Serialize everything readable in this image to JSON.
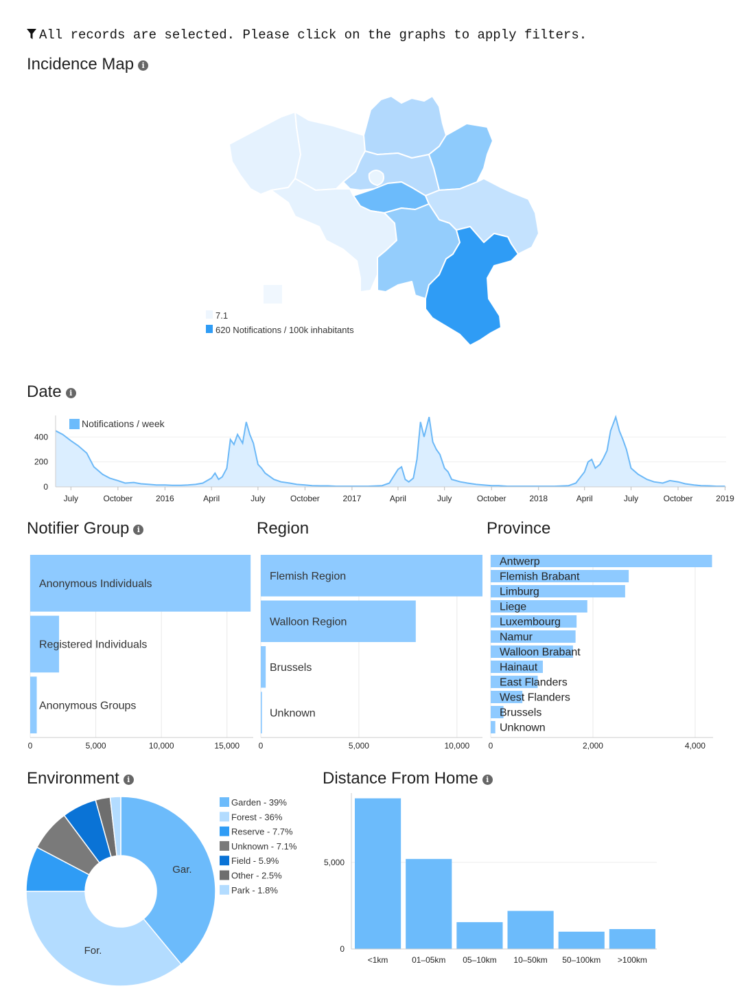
{
  "colors": {
    "bar": "#8ecaff",
    "bar_light": "#b3dcff",
    "date_fill": "#dbeeff",
    "date_line": "#6bb8f7",
    "map_strong": "#2f9cf5"
  },
  "filter_message": "All records are selected. Please click on the graphs to apply filters.",
  "filter_icon": "funnel-icon",
  "info_icon": "info-icon",
  "map": {
    "title": "Incidence Map",
    "legend_min": "7.1",
    "legend_max": "620 Notifications / 100k inhabitants"
  },
  "date": {
    "title": "Date",
    "legend": "Notifications / week",
    "y_ticks": [
      "0",
      "200",
      "400"
    ],
    "x_ticks": [
      "July",
      "October",
      "2016",
      "April",
      "July",
      "October",
      "2017",
      "April",
      "July",
      "October",
      "2018",
      "April",
      "July",
      "October",
      "2019"
    ]
  },
  "notifier": {
    "title": "Notifier Group",
    "x_ticks": [
      "0",
      "5,000",
      "10,000",
      "15,000"
    ]
  },
  "region": {
    "title": "Region",
    "x_ticks": [
      "0",
      "5,000",
      "10,000"
    ]
  },
  "province": {
    "title": "Province",
    "x_ticks": [
      "0",
      "2,000",
      "4,000"
    ]
  },
  "environment": {
    "title": "Environment",
    "slice_labels": [
      "Gar.",
      "For."
    ]
  },
  "distance": {
    "title": "Distance From Home",
    "y_ticks": [
      "0",
      "5,000"
    ]
  },
  "chart_data": [
    {
      "id": "date",
      "type": "area",
      "title": "Date",
      "series": [
        {
          "name": "Notifications / week",
          "x": [
            "2015-06-01",
            "2015-06-15",
            "2015-07-01",
            "2015-07-15",
            "2015-08-01",
            "2015-08-15",
            "2015-09-01",
            "2015-09-15",
            "2015-10-01",
            "2015-10-15",
            "2015-11-01",
            "2015-11-15",
            "2015-12-01",
            "2015-12-15",
            "2016-01-01",
            "2016-01-15",
            "2016-02-01",
            "2016-02-15",
            "2016-03-01",
            "2016-03-15",
            "2016-04-01",
            "2016-04-08",
            "2016-04-15",
            "2016-04-22",
            "2016-05-01",
            "2016-05-08",
            "2016-05-15",
            "2016-05-22",
            "2016-06-01",
            "2016-06-08",
            "2016-06-15",
            "2016-06-22",
            "2016-07-01",
            "2016-07-08",
            "2016-07-15",
            "2016-08-01",
            "2016-08-15",
            "2016-09-01",
            "2016-09-15",
            "2016-10-01",
            "2016-10-15",
            "2016-11-01",
            "2016-11-15",
            "2016-12-01",
            "2017-01-01",
            "2017-02-01",
            "2017-03-01",
            "2017-03-15",
            "2017-04-01",
            "2017-04-08",
            "2017-04-15",
            "2017-04-22",
            "2017-05-01",
            "2017-05-08",
            "2017-05-15",
            "2017-05-22",
            "2017-06-01",
            "2017-06-08",
            "2017-06-15",
            "2017-06-22",
            "2017-07-01",
            "2017-07-08",
            "2017-07-15",
            "2017-08-01",
            "2017-08-15",
            "2017-09-01",
            "2017-09-15",
            "2017-10-01",
            "2017-10-15",
            "2017-11-01",
            "2017-11-15",
            "2017-12-01",
            "2018-01-01",
            "2018-02-01",
            "2018-03-01",
            "2018-03-15",
            "2018-04-01",
            "2018-04-08",
            "2018-04-15",
            "2018-04-22",
            "2018-05-01",
            "2018-05-08",
            "2018-05-15",
            "2018-05-22",
            "2018-06-01",
            "2018-06-08",
            "2018-06-15",
            "2018-06-22",
            "2018-07-01",
            "2018-07-15",
            "2018-08-01",
            "2018-08-15",
            "2018-09-01",
            "2018-09-15",
            "2018-10-01",
            "2018-10-15",
            "2018-11-01",
            "2018-11-15",
            "2018-12-01",
            "2018-12-15",
            "2019-01-01"
          ],
          "y": [
            450,
            420,
            370,
            330,
            270,
            160,
            100,
            70,
            50,
            30,
            35,
            25,
            20,
            15,
            15,
            12,
            12,
            15,
            20,
            30,
            70,
            110,
            60,
            80,
            150,
            380,
            340,
            420,
            350,
            520,
            420,
            350,
            180,
            150,
            110,
            60,
            40,
            30,
            20,
            15,
            10,
            8,
            8,
            5,
            5,
            5,
            10,
            30,
            140,
            160,
            60,
            40,
            70,
            220,
            520,
            400,
            560,
            360,
            300,
            260,
            150,
            120,
            60,
            40,
            30,
            20,
            15,
            10,
            10,
            5,
            5,
            5,
            5,
            5,
            10,
            30,
            120,
            200,
            220,
            150,
            180,
            230,
            290,
            450,
            560,
            450,
            380,
            300,
            150,
            100,
            60,
            40,
            30,
            50,
            40,
            25,
            15,
            10,
            8,
            5,
            5
          ]
        }
      ],
      "xlabel": "",
      "ylabel": "",
      "ylim": [
        0,
        600
      ]
    },
    {
      "id": "notifier",
      "type": "bar",
      "orientation": "horizontal",
      "title": "Notifier Group",
      "categories": [
        "Anonymous Individuals",
        "Registered Individuals",
        "Anonymous Groups"
      ],
      "values": [
        16800,
        2200,
        500
      ],
      "xlim": [
        0,
        17000
      ]
    },
    {
      "id": "region",
      "type": "bar",
      "orientation": "horizontal",
      "title": "Region",
      "categories": [
        "Flemish Region",
        "Walloon Region",
        "Brussels",
        "Unknown"
      ],
      "values": [
        11300,
        7900,
        250,
        60
      ],
      "xlim": [
        0,
        11300
      ]
    },
    {
      "id": "province",
      "type": "bar",
      "orientation": "horizontal",
      "title": "Province",
      "categories": [
        "Antwerp",
        "Flemish Brabant",
        "Limburg",
        "Liege",
        "Luxembourg",
        "Namur",
        "Walloon Brabant",
        "Hainaut",
        "East Flanders",
        "West Flanders",
        "Brussels",
        "Unknown"
      ],
      "values": [
        4330,
        2700,
        2630,
        1890,
        1680,
        1660,
        1610,
        1020,
        920,
        620,
        250,
        90
      ],
      "xlim": [
        0,
        4350
      ]
    },
    {
      "id": "environment",
      "type": "pie",
      "title": "Environment",
      "categories": [
        "Garden - 39%",
        "Forest - 36%",
        "Reserve - 7.7%",
        "Unknown - 7.1%",
        "Field - 5.9%",
        "Other - 2.5%",
        "Park - 1.8%"
      ],
      "values": [
        39,
        36,
        7.7,
        7.1,
        5.9,
        2.5,
        1.8
      ],
      "colors": [
        "#6cbbfb",
        "#b3dcff",
        "#2f9cf5",
        "#7a7a7a",
        "#0a73d6",
        "#6e6e6e",
        "#b3dcff"
      ]
    },
    {
      "id": "distance",
      "type": "bar",
      "title": "Distance From Home",
      "categories": [
        "<1km",
        "01–05km",
        "05–10km",
        "10–50km",
        "50–100km",
        ">100km"
      ],
      "values": [
        8700,
        5200,
        1550,
        2200,
        1000,
        1150
      ],
      "ylim": [
        0,
        9000
      ]
    }
  ]
}
